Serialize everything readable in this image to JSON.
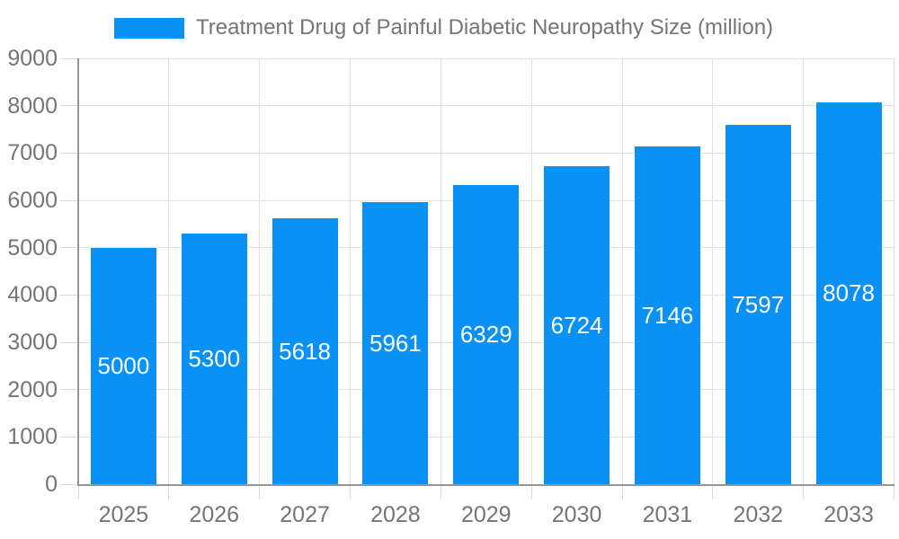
{
  "chart_data": {
    "type": "bar",
    "title": "Treatment Drug of Painful Diabetic Neuropathy Size (million)",
    "legend": [
      "Treatment Drug of Painful Diabetic Neuropathy Size (million)"
    ],
    "legend_position": "top",
    "categories": [
      "2025",
      "2026",
      "2027",
      "2028",
      "2029",
      "2030",
      "2031",
      "2032",
      "2033"
    ],
    "series": [
      {
        "name": "Treatment Drug of Painful Diabetic Neuropathy Size (million)",
        "values": [
          5000,
          5300,
          5618,
          5961,
          6329,
          6724,
          7146,
          7597,
          8078
        ]
      }
    ],
    "value_labels_inside_bars": true,
    "xlabel": "",
    "ylabel": "",
    "ylim": [
      0,
      9000
    ],
    "ytick_step": 1000,
    "yticks": [
      "0",
      "1000",
      "2000",
      "3000",
      "4000",
      "5000",
      "6000",
      "7000",
      "8000",
      "9000"
    ],
    "grid": true
  },
  "colors": {
    "bar": "#0a91f6",
    "grid_line": "#e2e2e2",
    "tick_line": "#d9d9d9",
    "axis_line": "#949494",
    "axis_text": "#757575",
    "legend_text": "#757575",
    "bar_label_text": "#ffffff",
    "background": "#ffffff"
  }
}
